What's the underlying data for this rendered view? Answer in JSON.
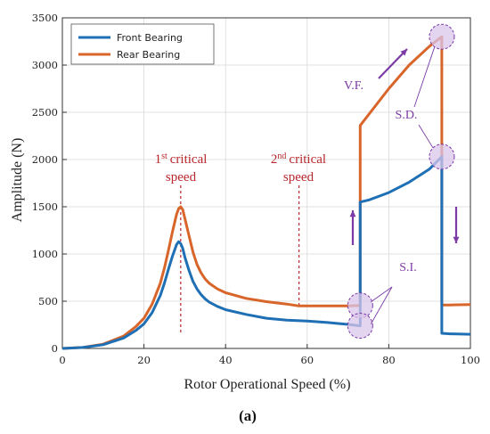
{
  "chart_data": {
    "type": "line",
    "xlabel": "Rotor Operational Speed (%)",
    "ylabel": "Amplitude (N)",
    "xlim": [
      0,
      100
    ],
    "ylim": [
      0,
      3500
    ],
    "xticks": [
      "0",
      "20",
      "40",
      "60",
      "80",
      "100"
    ],
    "yticks": [
      "0",
      "500",
      "1000",
      "1500",
      "2000",
      "2500",
      "3000",
      "3500"
    ],
    "grid": true,
    "legend_position": "top-left",
    "series": [
      {
        "name": "Front Bearing",
        "color": "#1f6fb4",
        "x": [
          0,
          5,
          10,
          15,
          18,
          20,
          22,
          24,
          25,
          26,
          27,
          28,
          28.5,
          29,
          29.5,
          30,
          31,
          32,
          33,
          34,
          35,
          36,
          38,
          40,
          45,
          50,
          55,
          60,
          65,
          70,
          73,
          73,
          75,
          80,
          85,
          90,
          93,
          93,
          95,
          100
        ],
        "y": [
          0,
          10,
          40,
          110,
          190,
          260,
          380,
          560,
          690,
          840,
          980,
          1100,
          1130,
          1110,
          1060,
          970,
          830,
          710,
          630,
          570,
          525,
          490,
          445,
          410,
          360,
          320,
          300,
          290,
          275,
          255,
          240,
          1550,
          1570,
          1650,
          1760,
          1900,
          2030,
          160,
          155,
          150
        ]
      },
      {
        "name": "Rear Bearing",
        "color": "#d8652a",
        "x": [
          0,
          5,
          10,
          15,
          18,
          20,
          22,
          24,
          25,
          26,
          27,
          28,
          28.5,
          29,
          29.5,
          30,
          31,
          32,
          33,
          34,
          35,
          36,
          38,
          40,
          45,
          50,
          55,
          58,
          65,
          70,
          73,
          73,
          80,
          85,
          90,
          93,
          93,
          95,
          100
        ],
        "y": [
          0,
          10,
          45,
          130,
          230,
          320,
          470,
          690,
          850,
          1040,
          1240,
          1420,
          1480,
          1500,
          1470,
          1380,
          1200,
          1020,
          890,
          800,
          735,
          690,
          630,
          590,
          530,
          495,
          470,
          450,
          450,
          450,
          455,
          2360,
          2750,
          3000,
          3200,
          3300,
          460,
          460,
          465
        ]
      }
    ],
    "annotations": {
      "first_critical_sup": "st",
      "first_critical_prefix": "1",
      "first_critical_text": "critical",
      "first_critical_line2": "speed",
      "second_critical_prefix": "2",
      "second_critical_sup": "nd",
      "second_critical_text": "critical",
      "second_critical_line2": "speed",
      "vf": "V.F.",
      "sd": "S.D.",
      "si": "S.I.",
      "first_critical_x": 29,
      "second_critical_x": 58,
      "jump_x_up": 73,
      "jump_x_down": 93
    },
    "caption": "(a)"
  },
  "colors": {
    "red_annotation": "#b8282c",
    "purple_annotation": "#7b3aa6",
    "circle_fill": "#d9c6ea",
    "grid": "#d9d9d9"
  }
}
